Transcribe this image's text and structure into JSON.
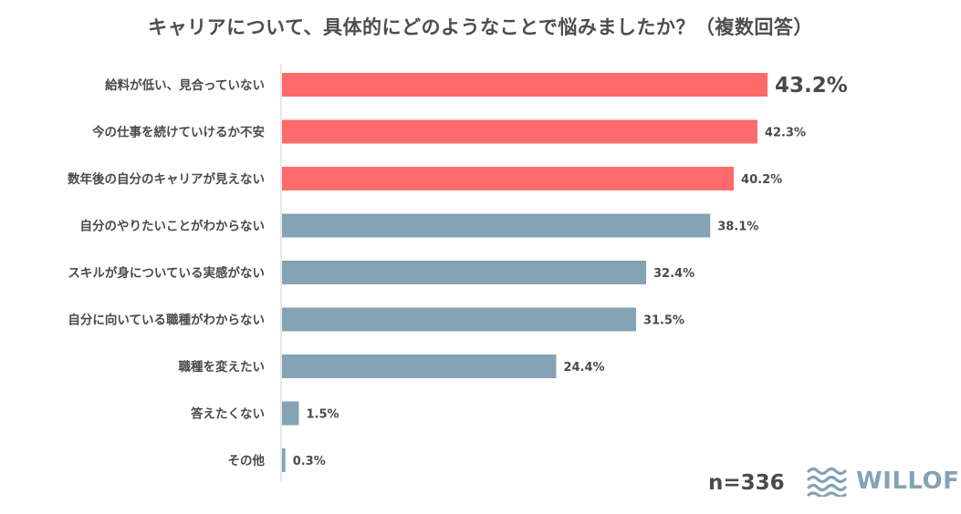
{
  "chart_data": {
    "type": "bar",
    "orientation": "horizontal",
    "title": "キャリアについて、具体的にどのようなことで悩みましたか？（複数回答）",
    "categories": [
      "給料が低い、見合っていない",
      "今の仕事を続けていけるか不安",
      "数年後の自分のキャリアが見えない",
      "自分のやりたいことがわからない",
      "スキルが身についている実感がない",
      "自分に向いている職種がわからない",
      "職種を変えたい",
      "答えたくない",
      "その他"
    ],
    "values": [
      43.2,
      42.3,
      40.2,
      38.1,
      32.4,
      31.5,
      24.4,
      1.5,
      0.3
    ],
    "value_labels": [
      "43.2%",
      "42.3%",
      "40.2%",
      "38.1%",
      "32.4%",
      "31.5%",
      "24.4%",
      "1.5%",
      "0.3%"
    ],
    "highlight_count": 3,
    "xlim": [
      0,
      43.2
    ],
    "grid": false,
    "colors": {
      "highlight": "#ff6b6b",
      "normal": "#84a3b4",
      "axis": "#cfcfcf"
    }
  },
  "sample_size_label": "n=336",
  "brand": {
    "name": "WILLOF",
    "icon": "wave-logo-icon",
    "color": "#84a3b4"
  }
}
